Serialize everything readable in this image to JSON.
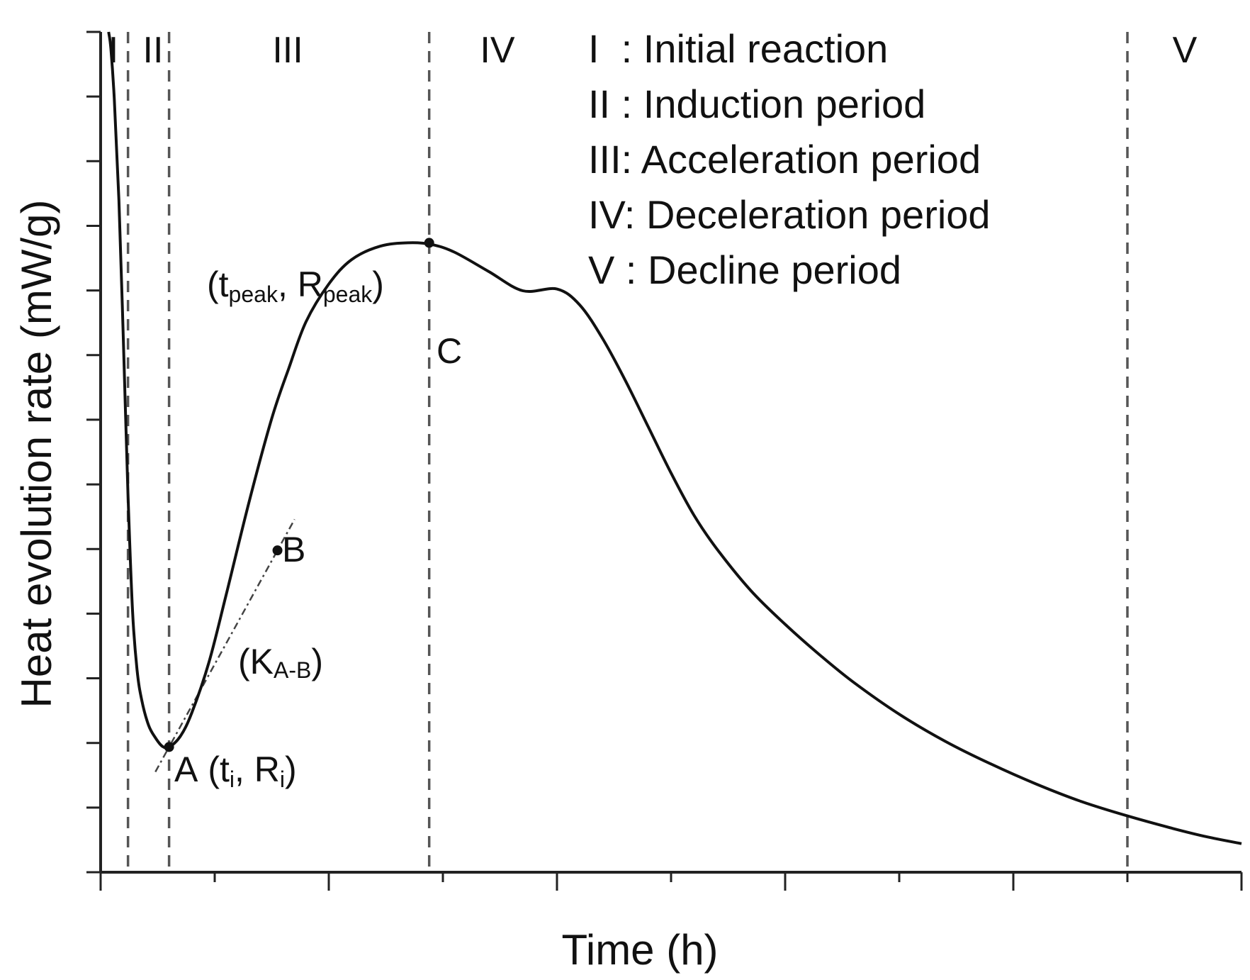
{
  "chart_data": {
    "type": "line",
    "title": "",
    "xlabel": "Time (h)",
    "ylabel": "Heat evolution rate (mW/g)",
    "xlim": [
      0,
      100
    ],
    "ylim": [
      0,
      100
    ],
    "x_tick_count": 10,
    "y_tick_count": 13,
    "show_tick_labels": false,
    "series": [
      {
        "name": "Heat evolution curve",
        "x": [
          0.7,
          0.9,
          1.2,
          1.6,
          2.0,
          2.4,
          2.8,
          3.2,
          3.6,
          4.2,
          4.8,
          5.4,
          6.0,
          7.0,
          8.0,
          9.5,
          11.0,
          13.0,
          15.0,
          16.5,
          18.0,
          20.0,
          22.0,
          24.5,
          27.0,
          29.0,
          31.0,
          34.0,
          37.0,
          40.0,
          42.0,
          44.0,
          46.0,
          48.0,
          50.0,
          52.0,
          54.0,
          57.0,
          60.0,
          63.0,
          66.0,
          70.0,
          74.0,
          78.0,
          82.0,
          86.0,
          90.0,
          94.0,
          97.0,
          100.0
        ],
        "y": [
          100.0,
          98.0,
          92.0,
          80.0,
          63.0,
          45.0,
          31.0,
          24.0,
          20.5,
          17.5,
          16.0,
          15.0,
          14.9,
          16.2,
          19.0,
          25.0,
          33.0,
          44.0,
          54.0,
          60.0,
          65.5,
          70.0,
          72.9,
          74.5,
          74.9,
          74.7,
          73.8,
          71.5,
          69.2,
          69.4,
          67.5,
          63.5,
          58.5,
          53.0,
          47.5,
          42.5,
          38.5,
          33.5,
          29.5,
          25.9,
          22.6,
          18.8,
          15.6,
          12.9,
          10.5,
          8.4,
          6.7,
          5.2,
          4.2,
          3.4
        ]
      }
    ],
    "phase_boundaries_x": [
      2.4,
      6.0,
      28.8,
      90.0
    ],
    "phase_labels": [
      {
        "label": "I",
        "x": 1.2
      },
      {
        "label": "II",
        "x": 4.6
      },
      {
        "label": "III",
        "x": 16.4
      },
      {
        "label": "IV",
        "x": 34.9
      },
      {
        "label": "V",
        "x": 95.0
      }
    ],
    "legend": [
      "I  : Initial reaction",
      "II : Induction period",
      "III: Acceleration period",
      "IV: Deceleration period",
      "V : Decline period"
    ],
    "points": {
      "A": {
        "x": 6.0,
        "y": 14.9,
        "label": "A",
        "coord_open": "(t",
        "coord_sub_1": "i",
        "coord_mid": ", R",
        "coord_sub_2": "i",
        "coord_close": ")"
      },
      "B": {
        "x": 15.5,
        "y": 38.3,
        "label": "B"
      },
      "C": {
        "x": 28.8,
        "y": 74.9,
        "label": "C",
        "coord_open": "(t",
        "coord_sub_1": "peak",
        "coord_mid": ", R",
        "coord_sub_2": "peak",
        "coord_close": ")"
      }
    },
    "slope_annotation": {
      "open": "(K",
      "sub": "A-B",
      "close": ")"
    },
    "colors": {
      "curve": "#111111",
      "axis": "#222222",
      "divider": "#555555",
      "text": "#111111"
    }
  }
}
